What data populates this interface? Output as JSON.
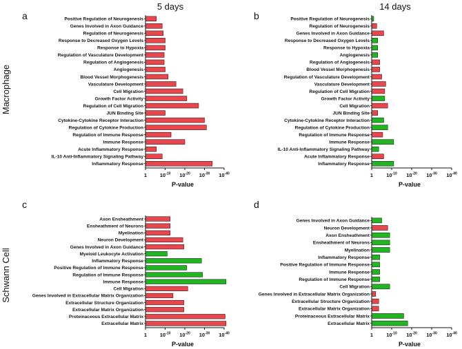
{
  "column_titles": [
    "5 days",
    "14 days"
  ],
  "row_titles": [
    "Macrophage",
    "Schwann Cell"
  ],
  "colors": {
    "red": "#e8474d",
    "green": "#22b522",
    "stroke": "#222222"
  },
  "chart_data": [
    {
      "panel": "a",
      "type": "bar",
      "orientation": "horizontal",
      "xlabel": "P-value",
      "xticks": [
        {
          "base": "1",
          "exp": ""
        },
        {
          "base": "10",
          "exp": "-10"
        },
        {
          "base": "10",
          "exp": "-20"
        },
        {
          "base": "10",
          "exp": "-30"
        },
        {
          "base": "10",
          "exp": "-40"
        }
      ],
      "xlim": [
        0,
        40
      ],
      "categories": [
        "Positive Regulation of Neurogenesis",
        "Genes Involved in Axon Guidance",
        "Regulation of Neurogenesis",
        "Response to Decreased Oxygen Levels",
        "Response to Hypoxia",
        "Regulation of Vasculature Development",
        "Regulation of Angiogenesis",
        "Angiogenesis",
        "Blood Vessel Morphogenesis",
        "Vasculature Development",
        "Cell Migration",
        "Growth Factor Activity",
        "Regulation of Cell Migration",
        "JUN Binding Site",
        "Cytokine-Cytokine Receptor Interaction",
        "Regulation of Cytokine Production",
        "Regulation of Immune Response",
        "Immune Response",
        "Acute Inflammatory Response",
        "IL-10 Anti-Inflammatory Signaling Pathway",
        "Inflammatory Response"
      ],
      "values": [
        5.5,
        8.5,
        9,
        10,
        10,
        9.5,
        9.5,
        10,
        11.5,
        15.5,
        19,
        21,
        27,
        10,
        30,
        31,
        13,
        20,
        5.5,
        8.5,
        34
      ],
      "colors": [
        "red",
        "red",
        "red",
        "red",
        "red",
        "red",
        "red",
        "red",
        "red",
        "red",
        "red",
        "red",
        "red",
        "red",
        "red",
        "red",
        "red",
        "red",
        "red",
        "red",
        "red"
      ]
    },
    {
      "panel": "b",
      "type": "bar",
      "orientation": "horizontal",
      "xlabel": "P-value",
      "xticks": [
        {
          "base": "1",
          "exp": ""
        },
        {
          "base": "10",
          "exp": "-10"
        },
        {
          "base": "10",
          "exp": "-20"
        },
        {
          "base": "10",
          "exp": "-30"
        },
        {
          "base": "10",
          "exp": "-40"
        }
      ],
      "xlim": [
        0,
        40
      ],
      "categories": [
        "Positive Regulation of Neurogenesis",
        "Regulation of Neurogenesis",
        "Genes Involved in Axon Guidance",
        "Response to Decreased Oxygen Levels",
        "Response to Hypoxia",
        "Angiogenesis",
        "Regulation of Angiogenesis",
        "Blood Vessel Morphogenesis",
        "Regulation of Vasculature Development",
        "Vasculature Development",
        "Regulation of Cell Migration",
        "Growth Factor Activity",
        "Cell Migration",
        "JUN Binding Site",
        "Cytokine-Cytokine Receptor Interaction",
        "Regulation of Cytokine Production",
        "Regulation of Immune Response",
        "Immune Response",
        "IL-10 Anti-Inflammatory Signaling Pathway",
        "Acute Inflammatory Response",
        "Inflammatory Response"
      ],
      "values": [
        1,
        2.5,
        6,
        3,
        3,
        3,
        4,
        4,
        5,
        7,
        6.5,
        6.5,
        8,
        3,
        6,
        8,
        5.5,
        11,
        3.5,
        6,
        11
      ],
      "colors": [
        "green",
        "red",
        "red",
        "green",
        "green",
        "green",
        "red",
        "red",
        "red",
        "red",
        "red",
        "green",
        "red",
        "red",
        "green",
        "green",
        "red",
        "green",
        "green",
        "red",
        "green"
      ]
    },
    {
      "panel": "c",
      "type": "bar",
      "orientation": "horizontal",
      "xlabel": "P-value",
      "xticks": [
        {
          "base": "1",
          "exp": ""
        },
        {
          "base": "10",
          "exp": "-10"
        },
        {
          "base": "10",
          "exp": "-20"
        },
        {
          "base": "10",
          "exp": "-30"
        },
        {
          "base": "10",
          "exp": "-40"
        }
      ],
      "xlim": [
        0,
        40
      ],
      "categories": [
        "Axon Ensheathment",
        "Ensheathment of Neurons",
        "Myelination",
        "Neuron Development",
        "Genes Involved in Axon Guidance",
        "Myeloid Leukocyte Activation",
        "Inflammatory Response",
        "Positive Regulation of Immune Response",
        "Regulation of Immune Response",
        "Immune Response",
        "Cell Migration",
        "Genes Involved in Extracellular Matrix Organization",
        "Extracellular Structure Organization",
        "Extracellular Matrix Organization",
        "Proteinaceous Extracellular Matrix",
        "Extracellular Matrix"
      ],
      "values": [
        12.5,
        12.5,
        12.5,
        19,
        19.5,
        11,
        28.5,
        21,
        29,
        41,
        21.5,
        14,
        19.5,
        19.5,
        40.5,
        41
      ],
      "colors": [
        "red",
        "red",
        "red",
        "red",
        "red",
        "green",
        "green",
        "green",
        "green",
        "green",
        "red",
        "red",
        "red",
        "red",
        "red",
        "red"
      ]
    },
    {
      "panel": "d",
      "type": "bar",
      "orientation": "horizontal",
      "xlabel": "P-value",
      "xticks": [
        {
          "base": "1",
          "exp": ""
        },
        {
          "base": "10",
          "exp": "-10"
        },
        {
          "base": "10",
          "exp": "-20"
        },
        {
          "base": "10",
          "exp": "-30"
        },
        {
          "base": "10",
          "exp": "-40"
        }
      ],
      "xlim": [
        0,
        40
      ],
      "categories": [
        "Genes Involved in Axon Guidance",
        "Neuron Development",
        "Axon Ensheathment",
        "Ensheathment of Neurons",
        "Myelination",
        "Inflammatory Response",
        "Positive Regulation of Immune Response",
        "Immune Response",
        "Regulation of Immune Response",
        "Cell Migration",
        "Genes Involved in Extracellular Matrix Organization",
        "Extracellular Structure Organization",
        "Extracellular Matrix Organization",
        "Proteinaceous Extracellular Matrix",
        "Extracellular Matrix"
      ],
      "values": [
        5,
        8,
        9,
        9,
        9,
        4,
        4,
        4,
        4,
        9,
        2,
        3.5,
        3.5,
        16,
        18
      ],
      "colors": [
        "green",
        "red",
        "green",
        "green",
        "green",
        "green",
        "green",
        "green",
        "green",
        "green",
        "red",
        "red",
        "red",
        "green",
        "green"
      ]
    }
  ]
}
